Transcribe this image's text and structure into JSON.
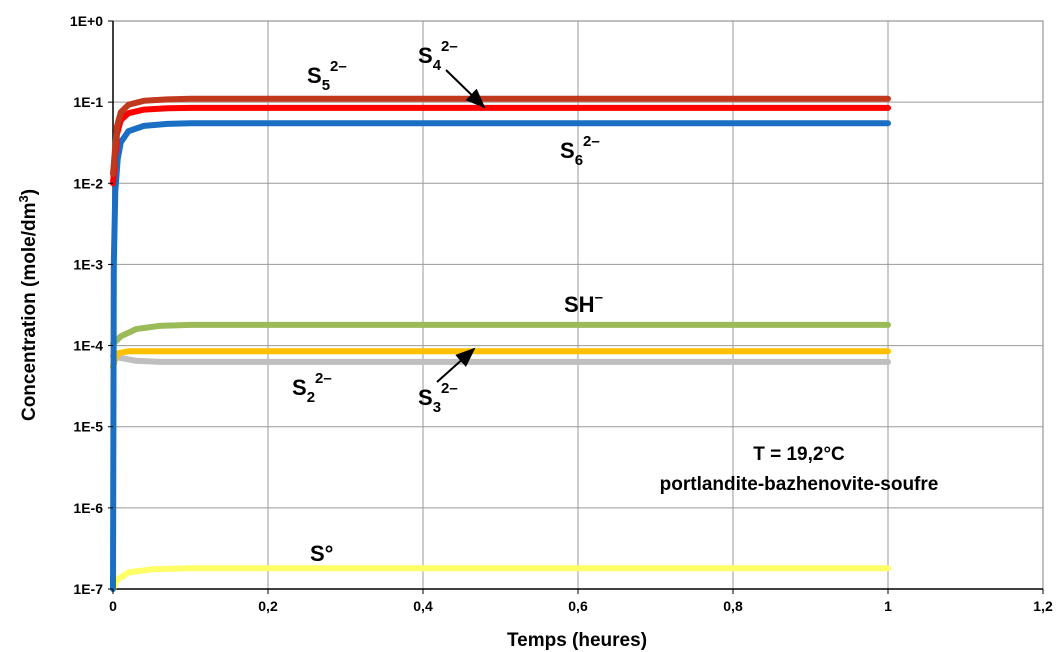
{
  "chart_data": {
    "type": "line",
    "xlabel": "Temps  (heures)",
    "ylabel": "Concentration  (mole/dm",
    "ylabel_sup": "3",
    "ylabel_end": ")",
    "xlim": [
      0,
      1.2
    ],
    "ylim": [
      1e-07,
      1
    ],
    "yscale": "log",
    "grid": true,
    "x_ticks": [
      "0",
      "0,2",
      "0,4",
      "0,6",
      "0,8",
      "1",
      "1,2"
    ],
    "y_ticks": [
      "1E-7",
      "1E-6",
      "1E-5",
      "1E-4",
      "1E-3",
      "1E-2",
      "1E-1",
      "1E+0"
    ],
    "series": [
      {
        "name": "S5 2−",
        "label_base": "S",
        "label_sub": "5",
        "label_sup": "2–",
        "color": "#c0391c",
        "start": 0.013,
        "plateau": 0.11,
        "points": [
          [
            0,
            0.013
          ],
          [
            0.005,
            0.05
          ],
          [
            0.01,
            0.075
          ],
          [
            0.02,
            0.093
          ],
          [
            0.04,
            0.104
          ],
          [
            0.07,
            0.108
          ],
          [
            0.1,
            0.11
          ],
          [
            1,
            0.11
          ]
        ]
      },
      {
        "name": "S4 2−",
        "label_base": "S",
        "label_sub": "4",
        "label_sup": "2–",
        "color": "#ff0000",
        "start": 0.01,
        "plateau": 0.085,
        "points": [
          [
            0,
            0.01
          ],
          [
            0.005,
            0.04
          ],
          [
            0.01,
            0.06
          ],
          [
            0.02,
            0.073
          ],
          [
            0.04,
            0.081
          ],
          [
            0.07,
            0.084
          ],
          [
            0.1,
            0.085
          ],
          [
            1,
            0.085
          ]
        ]
      },
      {
        "name": "S6 2−",
        "label_base": "S",
        "label_sub": "6",
        "label_sup": "2–",
        "color": "#1a6fc4",
        "start": 1e-07,
        "plateau": 0.055,
        "points": [
          [
            0,
            1e-07
          ],
          [
            0.001,
            0.001
          ],
          [
            0.003,
            0.008
          ],
          [
            0.006,
            0.02
          ],
          [
            0.01,
            0.032
          ],
          [
            0.02,
            0.044
          ],
          [
            0.04,
            0.051
          ],
          [
            0.07,
            0.054
          ],
          [
            0.1,
            0.055
          ],
          [
            1,
            0.055
          ]
        ]
      },
      {
        "name": "SH−",
        "label_base": "SH",
        "label_sub": "",
        "label_sup": "–",
        "color": "#9bbb59",
        "start": 0.000105,
        "plateau": 0.00018,
        "points": [
          [
            0,
            0.000105
          ],
          [
            0.01,
            0.00013
          ],
          [
            0.03,
            0.00016
          ],
          [
            0.06,
            0.000175
          ],
          [
            0.1,
            0.00018
          ],
          [
            1,
            0.00018
          ]
        ]
      },
      {
        "name": "S3 2−",
        "label_base": "S",
        "label_sub": "3",
        "label_sup": "2–",
        "color": "#ffc000",
        "start": 5.5e-05,
        "plateau": 8.5e-05,
        "points": [
          [
            0,
            5.5e-05
          ],
          [
            0.005,
            8e-05
          ],
          [
            0.02,
            8.5e-05
          ],
          [
            1,
            8.5e-05
          ]
        ]
      },
      {
        "name": "S2 2−",
        "label_base": "S",
        "label_sub": "2",
        "label_sup": "2–",
        "color": "#bfbfbf",
        "start": 7.5e-05,
        "plateau": 6.3e-05,
        "points": [
          [
            0,
            7.5e-05
          ],
          [
            0.01,
            7e-05
          ],
          [
            0.03,
            6.5e-05
          ],
          [
            0.06,
            6.3e-05
          ],
          [
            1,
            6.3e-05
          ]
        ]
      },
      {
        "name": "S°",
        "label_base": "S°",
        "label_sub": "",
        "label_sup": "",
        "color": "#ffff66",
        "start": 1e-07,
        "plateau": 1.8e-07,
        "points": [
          [
            0,
            1e-07
          ],
          [
            0.005,
            1.3e-07
          ],
          [
            0.02,
            1.6e-07
          ],
          [
            0.05,
            1.75e-07
          ],
          [
            0.1,
            1.8e-07
          ],
          [
            1,
            1.8e-07
          ]
        ]
      }
    ],
    "annotations": [
      {
        "line1": "T = 19,2°C",
        "line2": "portlandite-bazhenovite-soufre"
      }
    ]
  }
}
